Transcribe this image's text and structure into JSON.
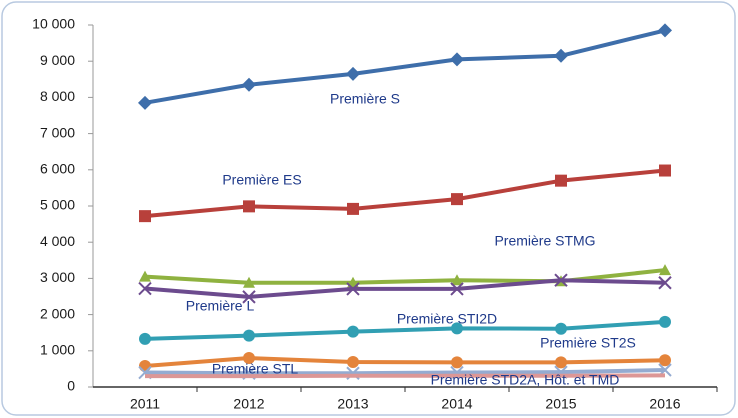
{
  "chart_data": {
    "type": "line",
    "categories": [
      "2011",
      "2012",
      "2013",
      "2014",
      "2015",
      "2016"
    ],
    "ylim": [
      0,
      10000
    ],
    "yticks": [
      0,
      {
        "value": 1000,
        "label": "1 000"
      },
      {
        "value": 2000,
        "label": "2 000"
      },
      {
        "value": 3000,
        "label": "3 000"
      },
      {
        "value": 4000,
        "label": "4 000"
      },
      {
        "value": 5000,
        "label": "5 000"
      },
      {
        "value": 6000,
        "label": "6 000"
      },
      {
        "value": 7000,
        "label": "7 000"
      },
      {
        "value": 8000,
        "label": "8 000"
      },
      {
        "value": 9000,
        "label": "9 000"
      },
      {
        "value": 10000,
        "label": "10 000"
      }
    ],
    "grid": false,
    "series": [
      {
        "name": "Première S",
        "color": "#3e6eaa",
        "marker": "diamond",
        "values": [
          7850,
          8350,
          8650,
          9050,
          9150,
          9850
        ]
      },
      {
        "name": "Première ES",
        "color": "#b8403b",
        "marker": "square",
        "values": [
          4720,
          4990,
          4920,
          5190,
          5700,
          5980
        ]
      },
      {
        "name": "Première STMG",
        "color": "#8fb240",
        "marker": "triangle",
        "values": [
          3050,
          2880,
          2880,
          2950,
          2920,
          3230
        ]
      },
      {
        "name": "Première L",
        "color": "#6c4b8e",
        "marker": "x",
        "values": [
          2720,
          2490,
          2710,
          2710,
          2950,
          2880
        ]
      },
      {
        "name": "Première STI2D",
        "color": "#319fb3",
        "marker": "circle",
        "values": [
          1330,
          1420,
          1530,
          1620,
          1610,
          1800
        ]
      },
      {
        "name": "Première ST2S",
        "color": "#e4843b",
        "marker": "circle",
        "values": [
          580,
          800,
          690,
          680,
          680,
          740
        ]
      },
      {
        "name": "Première STL",
        "color": "#94abd1",
        "marker": "x",
        "values": [
          400,
          380,
          380,
          400,
          410,
          470
        ]
      },
      {
        "name": "Première STD2A, Hôt. et TMD",
        "color": "#dc9796",
        "marker": "none",
        "values": [
          300,
          300,
          310,
          310,
          310,
          320
        ]
      }
    ]
  }
}
